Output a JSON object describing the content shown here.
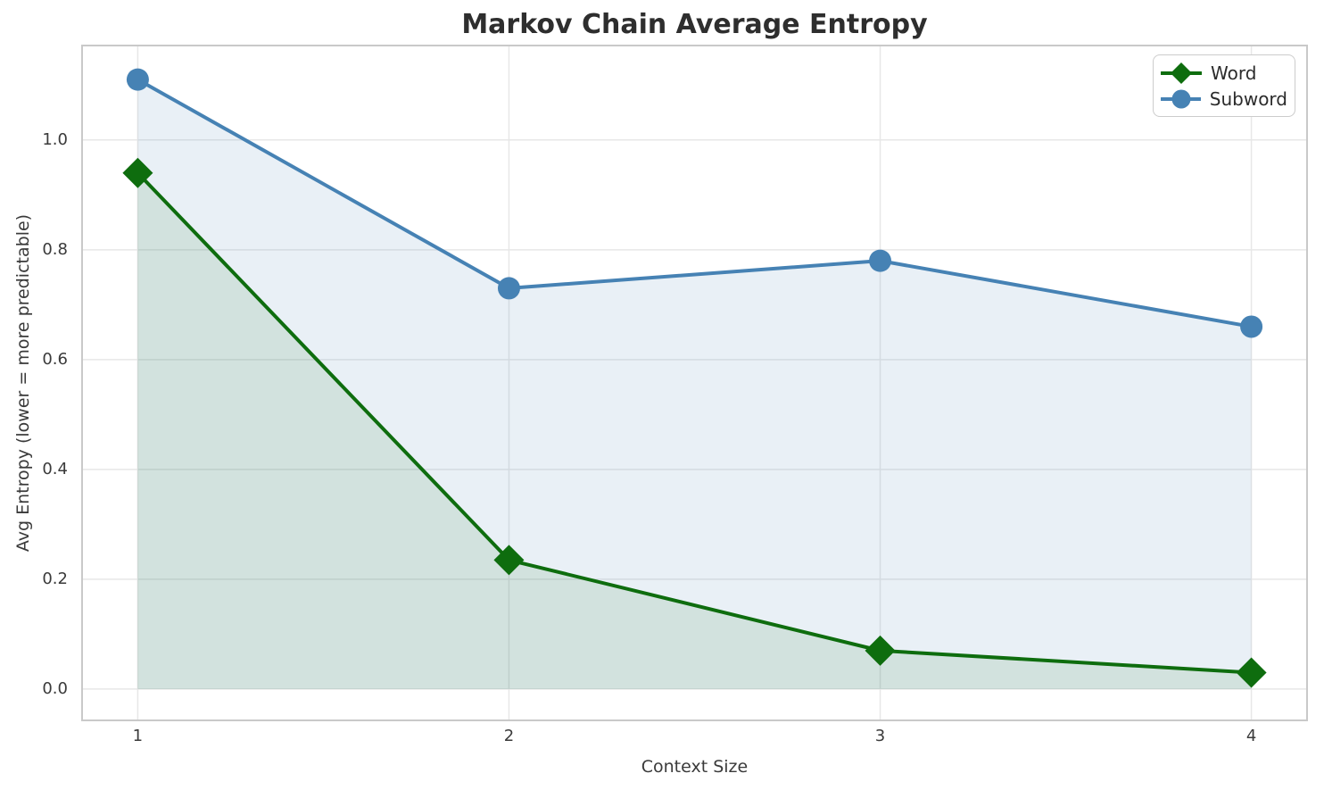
{
  "figure": {
    "title": "Markov Chain Average Entropy",
    "xlabel": "Context Size",
    "ylabel": "Avg Entropy (lower = more predictable)"
  },
  "legend": {
    "position": "upper right",
    "entries": [
      {
        "label": "Word",
        "marker": "diamond-icon",
        "color": "#0e6d0e"
      },
      {
        "label": "Subword",
        "marker": "circle-icon",
        "color": "#4682b4"
      }
    ]
  },
  "chart_data": {
    "type": "line",
    "title": "Markov Chain Average Entropy",
    "xlabel": "Context Size",
    "ylabel": "Avg Entropy (lower = more predictable)",
    "x": [
      1,
      2,
      3,
      4
    ],
    "series": [
      {
        "name": "Word",
        "values": [
          0.94,
          0.235,
          0.07,
          0.03
        ],
        "color": "#0e6d0e",
        "marker": "diamond",
        "fill_color": "rgba(14, 109, 14, 0.10)"
      },
      {
        "name": "Subword",
        "values": [
          1.11,
          0.73,
          0.78,
          0.66
        ],
        "color": "#4682b4",
        "marker": "circle",
        "fill_color": "rgba(70, 130, 180, 0.12)"
      }
    ],
    "x_ticks": [
      "1",
      "2",
      "3",
      "4"
    ],
    "y_ticks": [
      "0.0",
      "0.2",
      "0.4",
      "0.6",
      "0.8",
      "1.0"
    ],
    "xlim": [
      0.85,
      4.15
    ],
    "ylim": [
      -0.057,
      1.172
    ],
    "grid": true,
    "area_fill_baseline": 0,
    "legend_position": "upper right",
    "style": {
      "grid_color": "#e7e7e7",
      "spine_color": "#c9c9c9",
      "text_color": "#3a3a3a",
      "title_color": "#2e2e2e",
      "background": "#ffffff"
    }
  }
}
